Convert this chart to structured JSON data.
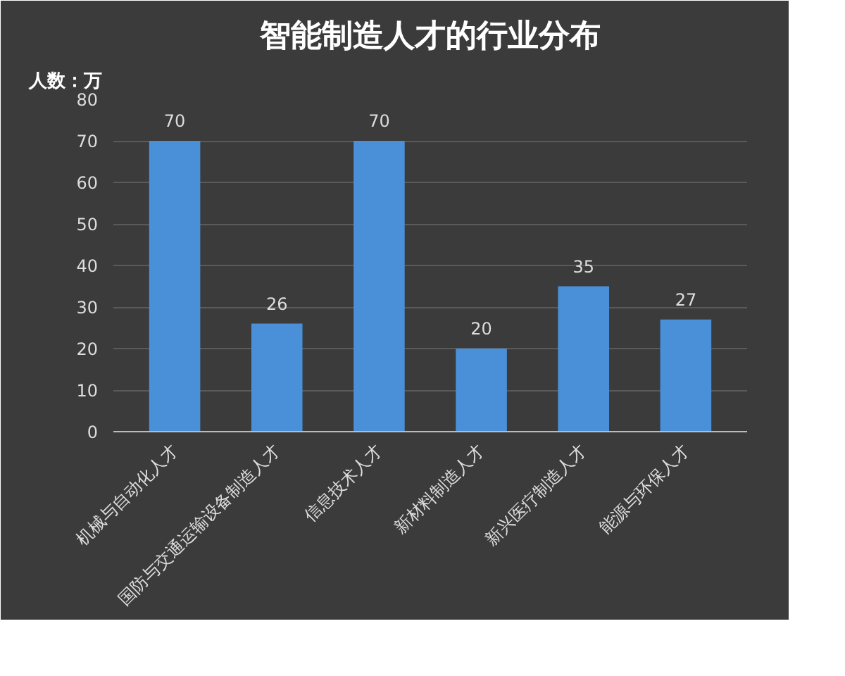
{
  "chart_data": {
    "type": "bar",
    "title": "智能制造人才的行业分布",
    "ylabel": "人数：万",
    "categories": [
      "机械与自动化人才",
      "国防与交通运输设备制造人才",
      "信息技术人才",
      "新材料制造人才",
      "新兴医疗制造人才",
      "能源与环保人才"
    ],
    "values": [
      70,
      26,
      70,
      20,
      35,
      27
    ],
    "color": "#4a90d9",
    "ylim": [
      0,
      80
    ],
    "yticks": [
      0,
      10,
      20,
      30,
      40,
      50,
      60,
      70,
      80
    ],
    "grid": "y",
    "data_labels": true
  }
}
